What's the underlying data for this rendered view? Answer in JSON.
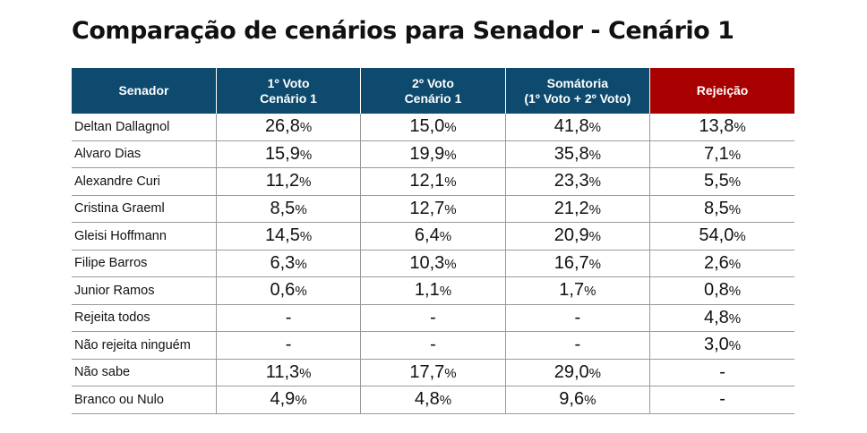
{
  "title": "Comparação de cenários para Senador - Cenário 1",
  "colors": {
    "header": "#0d4a6e",
    "rejection_header": "#a80000"
  },
  "chart_data": {
    "type": "table",
    "title": "Comparação de cenários para Senador - Cenário 1",
    "columns": [
      "Senador",
      "1º Voto\nCenário 1",
      "2º Voto\nCenário 1",
      "Somátoria\n(1º Voto + 2º Voto)",
      "Rejeição"
    ],
    "rows": [
      [
        "Deltan Dallagnol",
        "26,8%",
        "15,0%",
        "41,8%",
        "13,8%"
      ],
      [
        "Alvaro Dias",
        "15,9%",
        "19,9%",
        "35,8%",
        "7,1%"
      ],
      [
        "Alexandre Curi",
        "11,2%",
        "12,1%",
        "23,3%",
        "5,5%"
      ],
      [
        "Cristina Graeml",
        "8,5%",
        "12,7%",
        "21,2%",
        "8,5%"
      ],
      [
        "Gleisi Hoffmann",
        "14,5%",
        "6,4%",
        "20,9%",
        "54,0%"
      ],
      [
        "Filipe Barros",
        "6,3%",
        "10,3%",
        "16,7%",
        "2,6%"
      ],
      [
        "Junior Ramos",
        "0,6%",
        "1,1%",
        "1,7%",
        "0,8%"
      ],
      [
        "Rejeita todos",
        "-",
        "-",
        "-",
        "4,8%"
      ],
      [
        "Não rejeita ninguém",
        "-",
        "-",
        "-",
        "3,0%"
      ],
      [
        "Não sabe",
        "11,3%",
        "17,7%",
        "29,0%",
        "-"
      ],
      [
        "Branco ou Nulo",
        "4,9%",
        "4,8%",
        "9,6%",
        "-"
      ]
    ]
  }
}
